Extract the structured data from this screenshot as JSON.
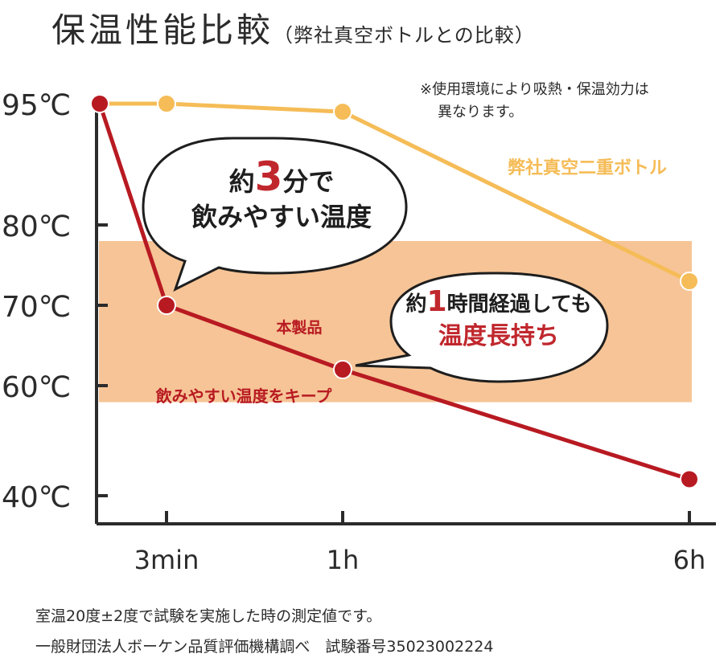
{
  "title": "保温性能比較",
  "subtitle": "（弊社真空ボトルとの比較）",
  "note": {
    "line1": "※使用環境により吸熱・保温効力は",
    "line2": "異なります。"
  },
  "bubble1": {
    "pre": "約",
    "num": "3",
    "mid": "分で",
    "line2": "飲みやすい温度"
  },
  "bubble2": {
    "pre": "約",
    "num": "1",
    "mid": "時間経過しても",
    "line2": "温度長持ち"
  },
  "band_label": "飲みやすい温度をキープ",
  "footer": {
    "line1": "室温20度±2度で試験を実施した時の測定値です。",
    "line2": "一般財団法人ボーケン品質評価機構調べ　試験番号35023002224"
  },
  "colors": {
    "product": "#b81a22",
    "competitor": "#f5bc57",
    "band": "#f6c496",
    "axis": "#2b2b2b"
  },
  "chart_data": {
    "type": "line",
    "x_ticks": [
      {
        "value": "3min",
        "label": "3min"
      },
      {
        "value": "1h",
        "label": "1h"
      },
      {
        "value": "6h",
        "label": "6h"
      }
    ],
    "y_ticks": [
      {
        "value": 95,
        "label": "95℃"
      },
      {
        "value": 80,
        "label": "80℃"
      },
      {
        "value": 70,
        "label": "70℃"
      },
      {
        "value": 60,
        "label": "60℃"
      },
      {
        "value": 40,
        "label": "40℃"
      }
    ],
    "highlight_band": {
      "from": 57,
      "to": 78
    },
    "series": [
      {
        "name": "弊社真空二重ボトル",
        "color": "#f5bc57",
        "points": [
          {
            "x": "0",
            "y": 95
          },
          {
            "x": "3min",
            "y": 95
          },
          {
            "x": "1h",
            "y": 94
          },
          {
            "x": "6h",
            "y": 73
          }
        ]
      },
      {
        "name": "本製品",
        "color": "#b81a22",
        "points": [
          {
            "x": "0",
            "y": 95
          },
          {
            "x": "3min",
            "y": 70
          },
          {
            "x": "1h",
            "y": 62
          },
          {
            "x": "6h",
            "y": 43
          }
        ]
      }
    ]
  }
}
